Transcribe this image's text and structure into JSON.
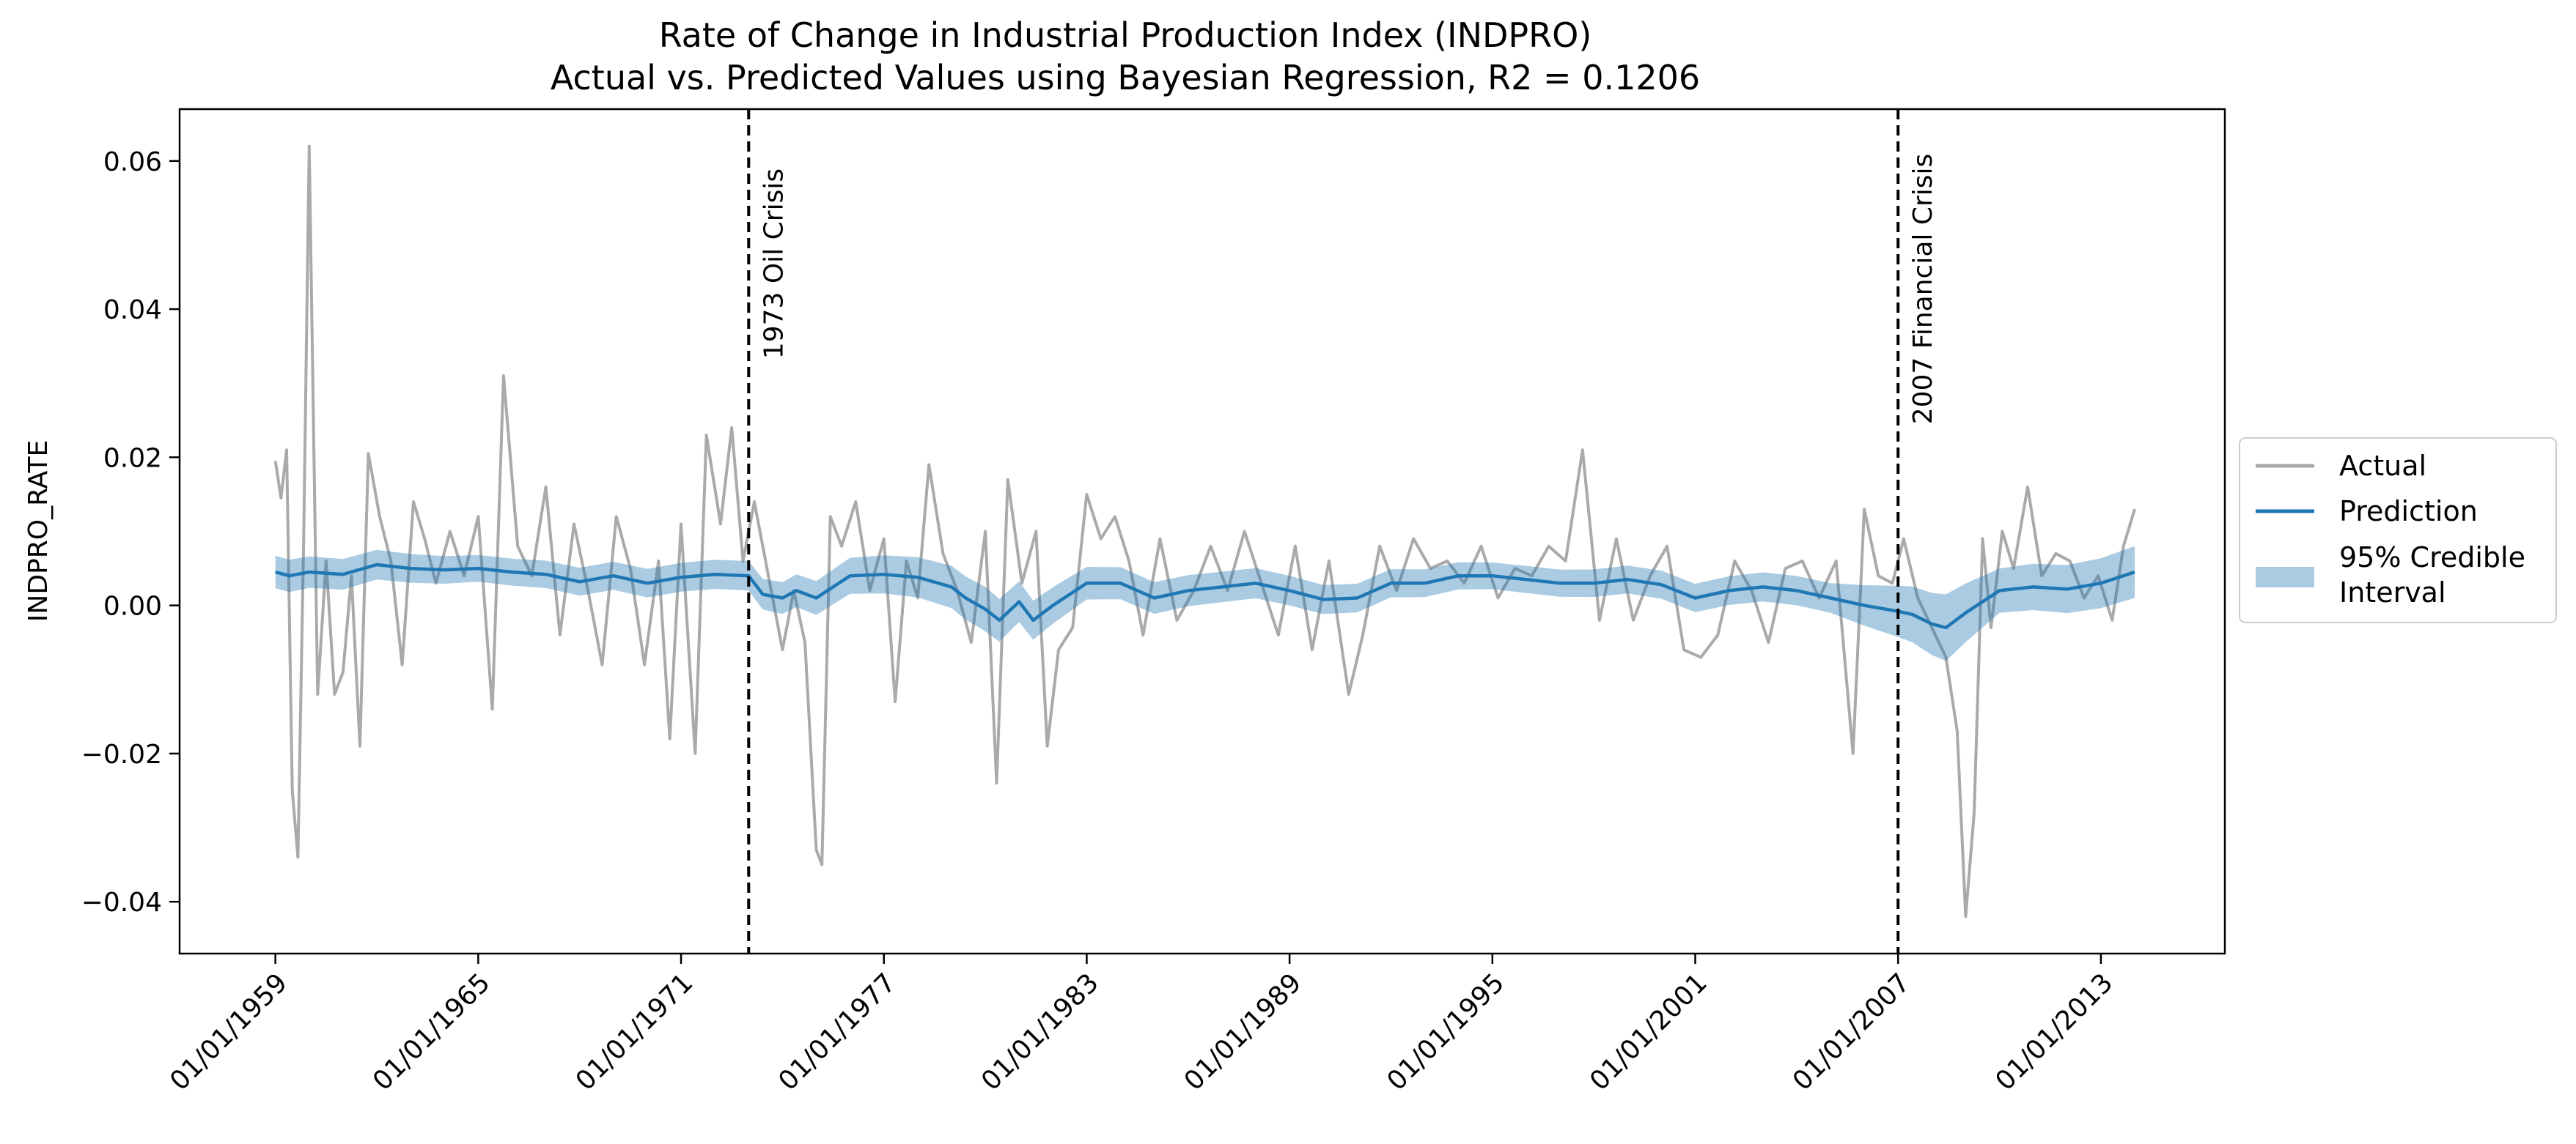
{
  "chart_data": {
    "type": "line",
    "title": "Rate of Change in Industrial Production Index (INDPRO)",
    "subtitle": "Actual vs. Predicted Values using Bayesian Regression, R2 = 0.1206",
    "xlabel": "",
    "ylabel": "INDPRO_RATE",
    "xlim": [
      "1956-03-01",
      "2016-09-01"
    ],
    "ylim": [
      -0.047,
      0.067
    ],
    "grid": false,
    "legend_position": "center-right outside",
    "x_ticks": [
      {
        "date": "1959-01-01",
        "label": "01/01/1959"
      },
      {
        "date": "1965-01-01",
        "label": "01/01/1965"
      },
      {
        "date": "1971-01-01",
        "label": "01/01/1971"
      },
      {
        "date": "1977-01-01",
        "label": "01/01/1977"
      },
      {
        "date": "1983-01-01",
        "label": "01/01/1983"
      },
      {
        "date": "1989-01-01",
        "label": "01/01/1989"
      },
      {
        "date": "1995-01-01",
        "label": "01/01/1995"
      },
      {
        "date": "2001-01-01",
        "label": "01/01/2001"
      },
      {
        "date": "2007-01-01",
        "label": "01/01/2007"
      },
      {
        "date": "2013-01-01",
        "label": "01/01/2013"
      }
    ],
    "y_ticks": [
      {
        "value": 0.06,
        "label": "0.06"
      },
      {
        "value": 0.04,
        "label": "0.04"
      },
      {
        "value": 0.02,
        "label": "0.02"
      },
      {
        "value": 0.0,
        "label": "0.00"
      },
      {
        "value": -0.02,
        "label": "−0.02"
      },
      {
        "value": -0.04,
        "label": "−0.04"
      }
    ],
    "annotations": [
      {
        "date": "1973-01-01",
        "text": "1973 Oil Crisis",
        "text_top_value": 0.059
      },
      {
        "date": "2007-01-01",
        "text": "2007 Financial Crisis",
        "text_top_value": 0.061
      }
    ],
    "series": [
      {
        "name": "Actual",
        "color": "#aaaaaa",
        "points": [
          [
            "1959-01",
            0.0195
          ],
          [
            "1959-03",
            0.0145
          ],
          [
            "1959-05",
            0.021
          ],
          [
            "1959-07",
            -0.025
          ],
          [
            "1959-09",
            -0.034
          ],
          [
            "1959-11",
            0.008
          ],
          [
            "1960-01",
            0.062
          ],
          [
            "1960-04",
            -0.012
          ],
          [
            "1960-07",
            0.006
          ],
          [
            "1960-10",
            -0.012
          ],
          [
            "1961-01",
            -0.009
          ],
          [
            "1961-04",
            0.004
          ],
          [
            "1961-07",
            -0.019
          ],
          [
            "1961-10",
            0.0205
          ],
          [
            "1962-02",
            0.012
          ],
          [
            "1962-06",
            0.006
          ],
          [
            "1962-10",
            -0.008
          ],
          [
            "1963-02",
            0.014
          ],
          [
            "1963-06",
            0.009
          ],
          [
            "1963-10",
            0.003
          ],
          [
            "1964-03",
            0.01
          ],
          [
            "1964-08",
            0.004
          ],
          [
            "1965-01",
            0.012
          ],
          [
            "1965-06",
            -0.014
          ],
          [
            "1965-10",
            0.031
          ],
          [
            "1966-03",
            0.008
          ],
          [
            "1966-08",
            0.004
          ],
          [
            "1967-01",
            0.016
          ],
          [
            "1967-06",
            -0.004
          ],
          [
            "1967-11",
            0.011
          ],
          [
            "1968-04",
            0.002
          ],
          [
            "1968-09",
            -0.008
          ],
          [
            "1969-02",
            0.012
          ],
          [
            "1969-07",
            0.005
          ],
          [
            "1969-12",
            -0.008
          ],
          [
            "1970-05",
            0.006
          ],
          [
            "1970-09",
            -0.018
          ],
          [
            "1971-01",
            0.011
          ],
          [
            "1971-06",
            -0.02
          ],
          [
            "1971-10",
            0.023
          ],
          [
            "1972-03",
            0.011
          ],
          [
            "1972-07",
            0.024
          ],
          [
            "1972-11",
            0.006
          ],
          [
            "1973-03",
            0.014
          ],
          [
            "1973-08",
            0.004
          ],
          [
            "1974-01",
            -0.006
          ],
          [
            "1974-05",
            0.002
          ],
          [
            "1974-09",
            -0.005
          ],
          [
            "1975-01",
            -0.033
          ],
          [
            "1975-03",
            -0.035
          ],
          [
            "1975-06",
            0.012
          ],
          [
            "1975-10",
            0.008
          ],
          [
            "1976-03",
            0.014
          ],
          [
            "1976-08",
            0.002
          ],
          [
            "1977-01",
            0.009
          ],
          [
            "1977-05",
            -0.013
          ],
          [
            "1977-09",
            0.006
          ],
          [
            "1978-01",
            0.001
          ],
          [
            "1978-05",
            0.019
          ],
          [
            "1978-10",
            0.007
          ],
          [
            "1979-03",
            0.002
          ],
          [
            "1979-08",
            -0.005
          ],
          [
            "1980-01",
            0.01
          ],
          [
            "1980-05",
            -0.024
          ],
          [
            "1980-09",
            0.017
          ],
          [
            "1981-02",
            0.003
          ],
          [
            "1981-07",
            0.01
          ],
          [
            "1981-11",
            -0.019
          ],
          [
            "1982-03",
            -0.006
          ],
          [
            "1982-08",
            -0.003
          ],
          [
            "1983-01",
            0.015
          ],
          [
            "1983-06",
            0.009
          ],
          [
            "1983-11",
            0.012
          ],
          [
            "1984-04",
            0.006
          ],
          [
            "1984-09",
            -0.004
          ],
          [
            "1985-03",
            0.009
          ],
          [
            "1985-09",
            -0.002
          ],
          [
            "1986-03",
            0.002
          ],
          [
            "1986-09",
            0.008
          ],
          [
            "1987-03",
            0.002
          ],
          [
            "1987-09",
            0.01
          ],
          [
            "1988-03",
            0.003
          ],
          [
            "1988-09",
            -0.004
          ],
          [
            "1989-03",
            0.008
          ],
          [
            "1989-09",
            -0.006
          ],
          [
            "1990-03",
            0.006
          ],
          [
            "1990-10",
            -0.012
          ],
          [
            "1991-03",
            -0.004
          ],
          [
            "1991-09",
            0.008
          ],
          [
            "1992-03",
            0.002
          ],
          [
            "1992-09",
            0.009
          ],
          [
            "1993-03",
            0.005
          ],
          [
            "1993-09",
            0.006
          ],
          [
            "1994-03",
            0.003
          ],
          [
            "1994-09",
            0.008
          ],
          [
            "1995-03",
            0.001
          ],
          [
            "1995-09",
            0.005
          ],
          [
            "1996-03",
            0.004
          ],
          [
            "1996-09",
            0.008
          ],
          [
            "1997-03",
            0.006
          ],
          [
            "1997-09",
            0.021
          ],
          [
            "1998-03",
            -0.002
          ],
          [
            "1998-09",
            0.009
          ],
          [
            "1999-03",
            -0.002
          ],
          [
            "1999-09",
            0.004
          ],
          [
            "2000-03",
            0.008
          ],
          [
            "2000-09",
            -0.006
          ],
          [
            "2001-03",
            -0.007
          ],
          [
            "2001-09",
            -0.004
          ],
          [
            "2002-03",
            0.006
          ],
          [
            "2002-09",
            0.002
          ],
          [
            "2003-03",
            -0.005
          ],
          [
            "2003-09",
            0.005
          ],
          [
            "2004-03",
            0.006
          ],
          [
            "2004-09",
            0.001
          ],
          [
            "2005-03",
            0.006
          ],
          [
            "2005-09",
            -0.02
          ],
          [
            "2006-01",
            0.013
          ],
          [
            "2006-06",
            0.004
          ],
          [
            "2006-11",
            0.003
          ],
          [
            "2007-03",
            0.009
          ],
          [
            "2007-08",
            0.001
          ],
          [
            "2008-01",
            -0.003
          ],
          [
            "2008-06",
            -0.007
          ],
          [
            "2008-10",
            -0.017
          ],
          [
            "2009-01",
            -0.042
          ],
          [
            "2009-04",
            -0.028
          ],
          [
            "2009-07",
            0.009
          ],
          [
            "2009-10",
            -0.003
          ],
          [
            "2010-02",
            0.01
          ],
          [
            "2010-06",
            0.005
          ],
          [
            "2010-11",
            0.016
          ],
          [
            "2011-04",
            0.004
          ],
          [
            "2011-09",
            0.007
          ],
          [
            "2012-02",
            0.006
          ],
          [
            "2012-07",
            0.001
          ],
          [
            "2012-12",
            0.004
          ],
          [
            "2013-05",
            -0.002
          ],
          [
            "2013-09",
            0.008
          ],
          [
            "2014-01",
            0.013
          ]
        ]
      },
      {
        "name": "Prediction",
        "color": "#1f77b4",
        "points": [
          [
            "1959-01",
            0.0045
          ],
          [
            "1959-06",
            0.004
          ],
          [
            "1960-01",
            0.0045
          ],
          [
            "1961-01",
            0.0042
          ],
          [
            "1962-01",
            0.0055
          ],
          [
            "1963-01",
            0.005
          ],
          [
            "1964-01",
            0.0048
          ],
          [
            "1965-01",
            0.005
          ],
          [
            "1966-01",
            0.0045
          ],
          [
            "1967-01",
            0.0042
          ],
          [
            "1968-01",
            0.0032
          ],
          [
            "1969-01",
            0.004
          ],
          [
            "1970-01",
            0.003
          ],
          [
            "1971-01",
            0.0038
          ],
          [
            "1972-01",
            0.0042
          ],
          [
            "1973-01",
            0.004
          ],
          [
            "1973-06",
            0.0015
          ],
          [
            "1974-01",
            0.001
          ],
          [
            "1974-06",
            0.002
          ],
          [
            "1975-01",
            0.001
          ],
          [
            "1976-01",
            0.004
          ],
          [
            "1977-01",
            0.0042
          ],
          [
            "1978-01",
            0.0038
          ],
          [
            "1979-01",
            0.0025
          ],
          [
            "1979-06",
            0.001
          ],
          [
            "1980-01",
            -0.0005
          ],
          [
            "1980-06",
            -0.002
          ],
          [
            "1981-01",
            0.0005
          ],
          [
            "1981-06",
            -0.002
          ],
          [
            "1982-01",
            0.0
          ],
          [
            "1983-01",
            0.003
          ],
          [
            "1984-01",
            0.003
          ],
          [
            "1985-01",
            0.001
          ],
          [
            "1986-01",
            0.002
          ],
          [
            "1987-01",
            0.0025
          ],
          [
            "1988-01",
            0.003
          ],
          [
            "1989-01",
            0.002
          ],
          [
            "1990-01",
            0.0008
          ],
          [
            "1991-01",
            0.001
          ],
          [
            "1992-01",
            0.003
          ],
          [
            "1993-01",
            0.003
          ],
          [
            "1994-01",
            0.004
          ],
          [
            "1995-01",
            0.004
          ],
          [
            "1996-01",
            0.0035
          ],
          [
            "1997-01",
            0.003
          ],
          [
            "1998-01",
            0.003
          ],
          [
            "1999-01",
            0.0035
          ],
          [
            "2000-01",
            0.0028
          ],
          [
            "2001-01",
            0.001
          ],
          [
            "2002-01",
            0.002
          ],
          [
            "2003-01",
            0.0025
          ],
          [
            "2004-01",
            0.002
          ],
          [
            "2005-01",
            0.001
          ],
          [
            "2006-01",
            0.0
          ],
          [
            "2007-01",
            -0.0008
          ],
          [
            "2007-06",
            -0.0012
          ],
          [
            "2008-01",
            -0.0025
          ],
          [
            "2008-06",
            -0.003
          ],
          [
            "2009-01",
            -0.001
          ],
          [
            "2010-01",
            0.002
          ],
          [
            "2011-01",
            0.0025
          ],
          [
            "2012-01",
            0.0022
          ],
          [
            "2013-01",
            0.003
          ],
          [
            "2014-01",
            0.0045
          ]
        ]
      }
    ],
    "interval": {
      "name": "95% Credible Interval",
      "color": "#1f77b4",
      "opacity": 0.38,
      "half_width": [
        [
          "1959-01",
          0.0022
        ],
        [
          "1965-01",
          0.0018
        ],
        [
          "1973-01",
          0.002
        ],
        [
          "1980-01",
          0.003
        ],
        [
          "1983-01",
          0.0022
        ],
        [
          "1995-01",
          0.0018
        ],
        [
          "2005-01",
          0.002
        ],
        [
          "2008-06",
          0.0045
        ],
        [
          "2010-01",
          0.003
        ],
        [
          "2014-01",
          0.0035
        ]
      ]
    },
    "legend": [
      {
        "key": "actual",
        "label": "Actual"
      },
      {
        "key": "prediction",
        "label": "Prediction"
      },
      {
        "key": "interval",
        "label_lines": [
          "95% Credible",
          "Interval"
        ]
      }
    ]
  }
}
